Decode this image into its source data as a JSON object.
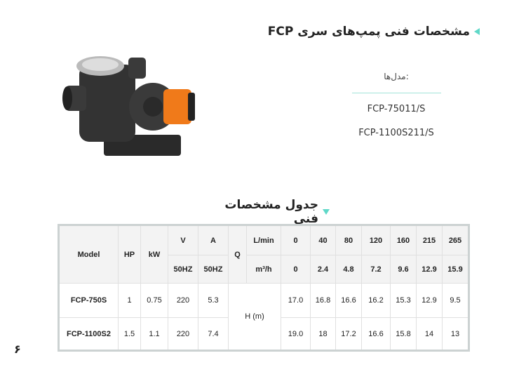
{
  "title": "مشخصات فنی پمپ‌های سری FCP",
  "models_label": "مدل‌ها:",
  "models": [
    "FCP-75011/S",
    "FCP-1100S211/S"
  ],
  "table_title": "جدول مشخصات فنی",
  "accent_color": "#5fd8c8",
  "table": {
    "model": "Model",
    "hp": "HP",
    "kw": "kW",
    "v": "V",
    "a": "A",
    "q": "Q",
    "lmin": "L/min",
    "v_unit": "50HZ",
    "a_unit": "50HZ",
    "m3h": "m³/h",
    "h": "H (m)",
    "flow_lmin": [
      "0",
      "40",
      "80",
      "120",
      "160",
      "215",
      "265"
    ],
    "flow_m3h": [
      "0",
      "2.4",
      "4.8",
      "7.2",
      "9.6",
      "12.9",
      "15.9"
    ],
    "rows": [
      {
        "model": "FCP-750S",
        "hp": "1",
        "kw": "0.75",
        "v": "220",
        "a": "5.3",
        "heads": [
          "17.0",
          "16.8",
          "16.6",
          "16.2",
          "15.3",
          "12.9",
          "9.5"
        ]
      },
      {
        "model": "FCP-1100S2",
        "hp": "1.5",
        "kw": "1.1",
        "v": "220",
        "a": "7.4",
        "heads": [
          "19.0",
          "18",
          "17.2",
          "16.6",
          "15.8",
          "14",
          "13"
        ]
      }
    ]
  },
  "page_number": "۶"
}
